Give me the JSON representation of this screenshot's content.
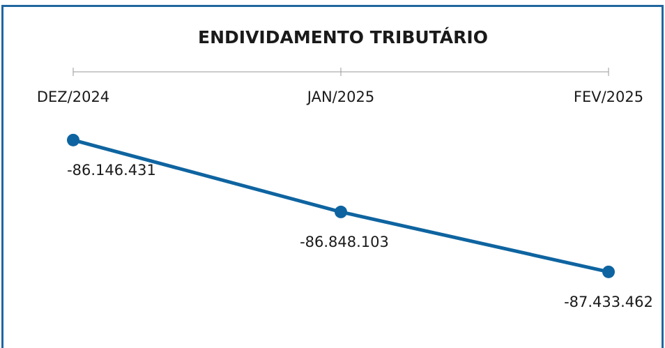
{
  "chart_data": {
    "type": "line",
    "title": "ENDIVIDAMENTO TRIBUTÁRIO",
    "categories": [
      "DEZ/2024",
      "JAN/2025",
      "FEV/2025"
    ],
    "values": [
      -86146431,
      -86848103,
      -87433462
    ],
    "value_labels": [
      "-86.146.431",
      "-86.848.103",
      "-87.433.462"
    ],
    "color": "#0e64a0",
    "ylim": [
      -87700000,
      -85950000
    ]
  }
}
